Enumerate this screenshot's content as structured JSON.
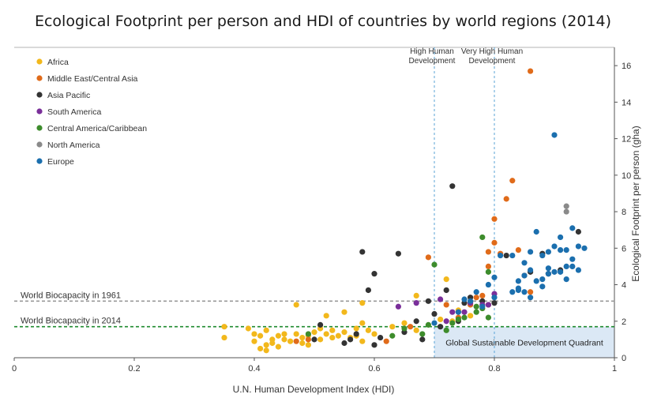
{
  "chart_data": {
    "type": "scatter",
    "title": "Ecological Footprint per person and HDI of countries by world regions (2014)",
    "xlabel": "U.N. Human Development Index (HDI)",
    "ylabel": "Ecological Footprint per person (gha)",
    "xlim": [
      0,
      1
    ],
    "ylim": [
      0,
      17
    ],
    "xticks": [
      0,
      0.2,
      0.4,
      0.6,
      0.8,
      1
    ],
    "xtick_labels": [
      "0",
      "0.2",
      "0.4",
      "0.6",
      "0.8",
      "1"
    ],
    "yticks": [
      0,
      2,
      4,
      6,
      8,
      10,
      12,
      14,
      16
    ],
    "ytick_labels": [
      "0",
      "2",
      "4",
      "6",
      "8",
      "10",
      "12",
      "14",
      "16"
    ],
    "legend_position": "top-left",
    "reference_lines": {
      "world_biocapacity_1961": {
        "label": "World Biocapacity in 1961",
        "value": 3.1,
        "color": "#9a9a9a"
      },
      "world_biocapacity_2014": {
        "label": "World Biocapacity in 2014",
        "value": 1.7,
        "color": "#1e8a2e"
      }
    },
    "hdi_thresholds": [
      {
        "label_line1": "High Human",
        "label_line2": "Development",
        "value": 0.7
      },
      {
        "label_line1": "Very High Human",
        "label_line2": "Development",
        "value": 0.8
      }
    ],
    "quadrant": {
      "label": "Global Sustainable Development Quadrant",
      "x_min": 0.7,
      "x_max": 1,
      "y_max": 1.7,
      "color": "#dbe8f5"
    },
    "series": [
      {
        "name": "Africa",
        "color": "#f2b81c",
        "points": [
          [
            0.35,
            1.1
          ],
          [
            0.35,
            1.7
          ],
          [
            0.39,
            1.6
          ],
          [
            0.4,
            0.9
          ],
          [
            0.4,
            1.3
          ],
          [
            0.41,
            0.5
          ],
          [
            0.41,
            1.2
          ],
          [
            0.42,
            0.7
          ],
          [
            0.42,
            1.5
          ],
          [
            0.42,
            0.4
          ],
          [
            0.43,
            1.0
          ],
          [
            0.43,
            0.8
          ],
          [
            0.44,
            1.2
          ],
          [
            0.44,
            0.6
          ],
          [
            0.45,
            1.0
          ],
          [
            0.45,
            1.3
          ],
          [
            0.46,
            0.9
          ],
          [
            0.47,
            1.3
          ],
          [
            0.47,
            2.9
          ],
          [
            0.48,
            1.1
          ],
          [
            0.48,
            0.8
          ],
          [
            0.49,
            1.2
          ],
          [
            0.49,
            0.7
          ],
          [
            0.5,
            1.4
          ],
          [
            0.51,
            1.0
          ],
          [
            0.51,
            1.6
          ],
          [
            0.52,
            1.3
          ],
          [
            0.52,
            2.3
          ],
          [
            0.53,
            1.5
          ],
          [
            0.53,
            1.1
          ],
          [
            0.54,
            1.2
          ],
          [
            0.55,
            1.4
          ],
          [
            0.55,
            2.5
          ],
          [
            0.56,
            1.1
          ],
          [
            0.57,
            1.6
          ],
          [
            0.57,
            1.2
          ],
          [
            0.58,
            0.9
          ],
          [
            0.58,
            1.9
          ],
          [
            0.58,
            3.0
          ],
          [
            0.59,
            1.5
          ],
          [
            0.6,
            1.3
          ],
          [
            0.63,
            1.7
          ],
          [
            0.65,
            1.9
          ],
          [
            0.67,
            3.4
          ],
          [
            0.67,
            1.5
          ],
          [
            0.71,
            2.1
          ],
          [
            0.72,
            4.3
          ],
          [
            0.73,
            2.0
          ],
          [
            0.74,
            2.6
          ],
          [
            0.76,
            2.3
          ]
        ]
      },
      {
        "name": "Middle East/Central Asia",
        "color": "#e06b1a",
        "points": [
          [
            0.47,
            0.9
          ],
          [
            0.49,
            1.0
          ],
          [
            0.62,
            0.9
          ],
          [
            0.66,
            1.7
          ],
          [
            0.69,
            5.5
          ],
          [
            0.72,
            2.9
          ],
          [
            0.74,
            2.2
          ],
          [
            0.76,
            2.9
          ],
          [
            0.77,
            3.3
          ],
          [
            0.78,
            3.4
          ],
          [
            0.79,
            5.0
          ],
          [
            0.79,
            5.8
          ],
          [
            0.8,
            6.3
          ],
          [
            0.8,
            7.6
          ],
          [
            0.81,
            5.7
          ],
          [
            0.82,
            8.7
          ],
          [
            0.83,
            9.7
          ],
          [
            0.84,
            5.9
          ],
          [
            0.85,
            4.5
          ],
          [
            0.86,
            15.7
          ],
          [
            0.86,
            3.6
          ],
          [
            0.79,
            2.9
          ]
        ]
      },
      {
        "name": "Asia Pacific",
        "color": "#333333",
        "points": [
          [
            0.5,
            1.0
          ],
          [
            0.51,
            1.8
          ],
          [
            0.55,
            0.8
          ],
          [
            0.56,
            1.0
          ],
          [
            0.57,
            1.3
          ],
          [
            0.58,
            5.8
          ],
          [
            0.59,
            3.7
          ],
          [
            0.6,
            4.6
          ],
          [
            0.6,
            0.7
          ],
          [
            0.61,
            1.1
          ],
          [
            0.64,
            5.7
          ],
          [
            0.65,
            1.4
          ],
          [
            0.67,
            2.0
          ],
          [
            0.68,
            1.0
          ],
          [
            0.69,
            3.1
          ],
          [
            0.7,
            2.4
          ],
          [
            0.71,
            1.7
          ],
          [
            0.72,
            3.7
          ],
          [
            0.73,
            9.4
          ],
          [
            0.74,
            2.0
          ],
          [
            0.75,
            3.0
          ],
          [
            0.76,
            3.3
          ],
          [
            0.78,
            3.1
          ],
          [
            0.8,
            3.0
          ],
          [
            0.82,
            5.6
          ],
          [
            0.86,
            4.7
          ],
          [
            0.88,
            5.7
          ],
          [
            0.89,
            4.6
          ],
          [
            0.91,
            4.8
          ],
          [
            0.94,
            6.9
          ]
        ]
      },
      {
        "name": "South America",
        "color": "#7a2f9a",
        "points": [
          [
            0.64,
            2.8
          ],
          [
            0.67,
            3.0
          ],
          [
            0.71,
            3.2
          ],
          [
            0.72,
            2.0
          ],
          [
            0.73,
            2.5
          ],
          [
            0.75,
            2.5
          ],
          [
            0.76,
            3.0
          ],
          [
            0.78,
            2.9
          ],
          [
            0.79,
            2.9
          ],
          [
            0.8,
            3.5
          ]
        ]
      },
      {
        "name": "Central America/Caribbean",
        "color": "#3d8c2c",
        "points": [
          [
            0.49,
            1.3
          ],
          [
            0.63,
            1.2
          ],
          [
            0.65,
            1.6
          ],
          [
            0.68,
            1.3
          ],
          [
            0.69,
            1.8
          ],
          [
            0.7,
            5.1
          ],
          [
            0.72,
            1.5
          ],
          [
            0.73,
            1.9
          ],
          [
            0.74,
            2.1
          ],
          [
            0.75,
            2.2
          ],
          [
            0.77,
            2.5
          ],
          [
            0.78,
            6.6
          ],
          [
            0.78,
            2.7
          ],
          [
            0.79,
            4.7
          ],
          [
            0.79,
            2.2
          ],
          [
            0.77,
            2.8
          ]
        ]
      },
      {
        "name": "North America",
        "color": "#8a8a8a",
        "points": [
          [
            0.92,
            8.3
          ],
          [
            0.92,
            8.0
          ]
        ]
      },
      {
        "name": "Europe",
        "color": "#1b6fae",
        "points": [
          [
            0.7,
            1.9
          ],
          [
            0.74,
            2.5
          ],
          [
            0.75,
            3.2
          ],
          [
            0.76,
            3.1
          ],
          [
            0.77,
            3.6
          ],
          [
            0.78,
            2.8
          ],
          [
            0.79,
            4.0
          ],
          [
            0.8,
            3.3
          ],
          [
            0.8,
            4.4
          ],
          [
            0.81,
            5.6
          ],
          [
            0.83,
            3.6
          ],
          [
            0.83,
            5.6
          ],
          [
            0.84,
            4.2
          ],
          [
            0.84,
            3.7
          ],
          [
            0.85,
            4.5
          ],
          [
            0.85,
            5.2
          ],
          [
            0.86,
            3.3
          ],
          [
            0.86,
            5.8
          ],
          [
            0.86,
            4.8
          ],
          [
            0.87,
            4.2
          ],
          [
            0.87,
            6.9
          ],
          [
            0.88,
            5.6
          ],
          [
            0.88,
            3.9
          ],
          [
            0.88,
            4.3
          ],
          [
            0.89,
            4.6
          ],
          [
            0.89,
            5.8
          ],
          [
            0.9,
            4.7
          ],
          [
            0.9,
            6.1
          ],
          [
            0.9,
            12.2
          ],
          [
            0.91,
            5.9
          ],
          [
            0.91,
            6.6
          ],
          [
            0.91,
            4.7
          ],
          [
            0.92,
            5.0
          ],
          [
            0.92,
            4.3
          ],
          [
            0.92,
            5.9
          ],
          [
            0.93,
            5.0
          ],
          [
            0.93,
            7.1
          ],
          [
            0.93,
            5.4
          ],
          [
            0.94,
            4.8
          ],
          [
            0.94,
            6.1
          ],
          [
            0.95,
            6.0
          ],
          [
            0.89,
            4.9
          ],
          [
            0.84,
            3.8
          ],
          [
            0.85,
            3.6
          ]
        ]
      }
    ]
  }
}
